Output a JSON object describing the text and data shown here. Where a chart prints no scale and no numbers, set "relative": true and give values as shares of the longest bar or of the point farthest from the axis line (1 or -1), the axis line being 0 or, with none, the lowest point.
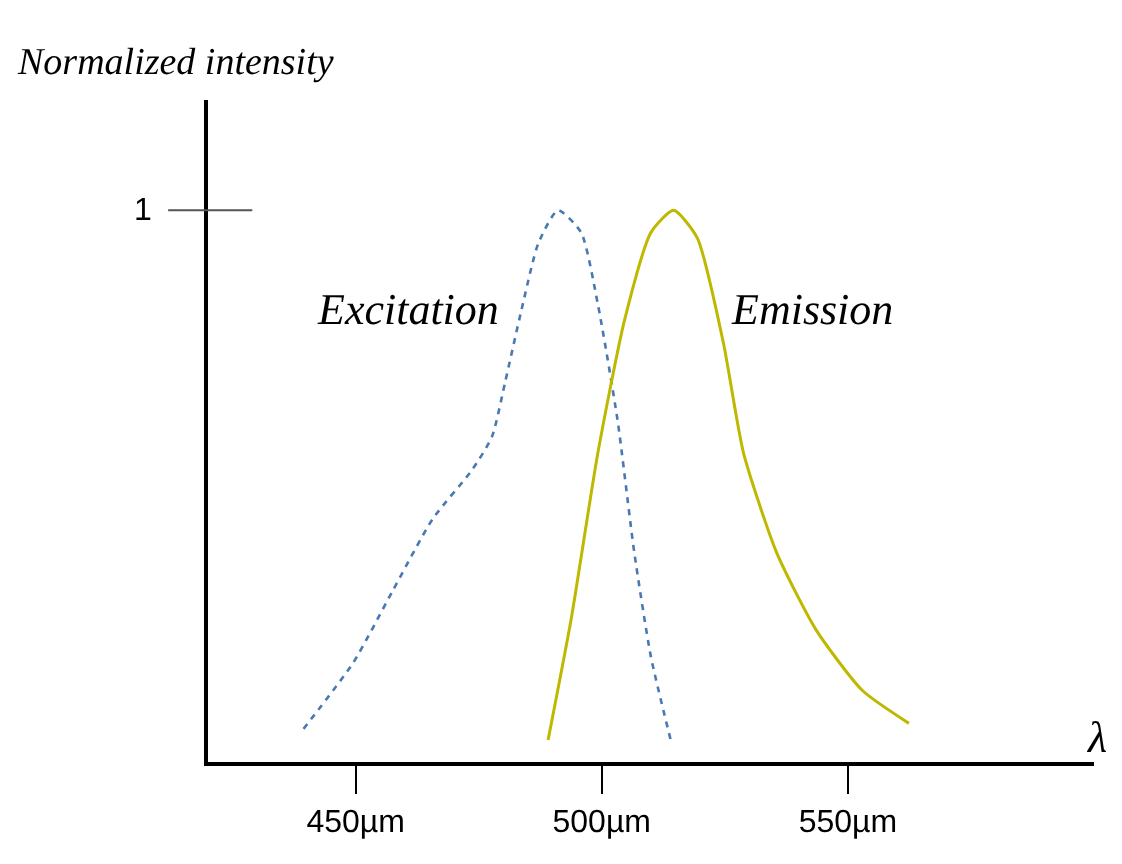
{
  "chart_data": {
    "type": "line",
    "ylabel": "Normalized intensity",
    "xlabel": "λ",
    "series": [
      {
        "name": "Excitation",
        "color": "#4a78b0",
        "line_style": "dotted",
        "x": [
          439.4,
          449.5,
          457.5,
          465.6,
          473.7,
          477.7,
          480.4,
          483.7,
          487.1,
          491.1,
          495.8,
          499.2,
          503.2,
          506.6,
          510,
          514
        ],
        "values": [
          0.06,
          0.18,
          0.31,
          0.44,
          0.53,
          0.59,
          0.69,
          0.82,
          0.94,
          1.0,
          0.96,
          0.83,
          0.62,
          0.38,
          0.19,
          0.04
        ]
      },
      {
        "name": "Emission",
        "color": "#bfb800",
        "line_style": "solid",
        "x": [
          489.1,
          493.8,
          499.2,
          504.6,
          510,
          514.6,
          519.4,
          524.7,
          528.8,
          535.5,
          543.5,
          552.9,
          562.4
        ],
        "values": [
          0.04,
          0.26,
          0.56,
          0.8,
          0.96,
          1.0,
          0.95,
          0.76,
          0.56,
          0.38,
          0.24,
          0.13,
          0.07
        ]
      }
    ],
    "xlim": [
      420,
      600
    ],
    "relative": true,
    "annotations": [
      "1"
    ],
    "xticks": [
      {
        "value": 450,
        "label": "450µm"
      },
      {
        "value": 500,
        "label": "500µm"
      },
      {
        "value": 550,
        "label": "550µm"
      }
    ],
    "legend": false,
    "marker": "none"
  }
}
